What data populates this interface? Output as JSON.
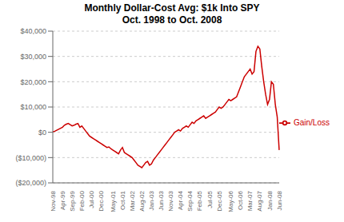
{
  "chart_data": {
    "type": "line",
    "title": "Monthly Dollar-Cost Avg: $1k Into SPY",
    "subtitle": "Oct. 1998 to Oct. 2008",
    "categories": [
      "Nov-98",
      null,
      null,
      null,
      null,
      "Apr-99",
      null,
      null,
      null,
      null,
      "Sep-99",
      null,
      null,
      null,
      null,
      "Feb-00",
      null,
      null,
      null,
      null,
      "Jul-00",
      null,
      null,
      null,
      null,
      "Dec-00",
      null,
      null,
      null,
      null,
      null,
      "May-01",
      null,
      null,
      null,
      null,
      "Oct-01",
      null,
      null,
      null,
      null,
      "Mar-02",
      null,
      null,
      null,
      null,
      "Aug-02",
      null,
      null,
      null,
      null,
      "Jan-03",
      null,
      null,
      null,
      null,
      "Jun-03",
      null,
      null,
      null,
      null,
      "Nov-03",
      null,
      null,
      null,
      null,
      "Apr-04",
      null,
      null,
      null,
      null,
      "Sep-04",
      null,
      null,
      null,
      null,
      "Feb-05",
      null,
      null,
      null,
      null,
      "Jul-05",
      null,
      null,
      null,
      null,
      "Dec-05",
      null,
      null,
      null,
      null,
      null,
      "May-06",
      null,
      null,
      null,
      null,
      "Oct-06",
      null,
      null,
      null,
      null,
      "Mar-07",
      null,
      null,
      null,
      null,
      "Aug-07",
      null,
      null,
      null,
      null,
      "Jan-08",
      null,
      null,
      null,
      null,
      "Jun-08"
    ],
    "series": [
      {
        "name": "Gain/Loss",
        "color": "#cc0000",
        "values": [
          200,
          400,
          800,
          1200,
          1600,
          2000,
          2800,
          3200,
          3500,
          3000,
          2500,
          2800,
          3200,
          3500,
          2000,
          2500,
          1500,
          500,
          -500,
          -1500,
          -2000,
          -2500,
          -3000,
          -3500,
          -4000,
          -4500,
          -5000,
          -5500,
          -6000,
          -5800,
          -6500,
          -7000,
          -7500,
          -8000,
          -8500,
          -7000,
          -6000,
          -8000,
          -8500,
          -9000,
          -9500,
          -10000,
          -11000,
          -12000,
          -13000,
          -13500,
          -14000,
          -13000,
          -12000,
          -11500,
          -13000,
          -12500,
          -11000,
          -10000,
          -9000,
          -8000,
          -7000,
          -6000,
          -5000,
          -4000,
          -3000,
          -2000,
          -1000,
          0,
          500,
          1000,
          500,
          1500,
          2000,
          2500,
          2000,
          3000,
          4000,
          3500,
          4500,
          5000,
          5500,
          6000,
          6500,
          5500,
          6000,
          6500,
          7000,
          7500,
          8000,
          9000,
          10000,
          9500,
          10000,
          11000,
          12000,
          13000,
          12500,
          13000,
          13500,
          14000,
          16000,
          18000,
          20000,
          22000,
          23000,
          24000,
          25000,
          23000,
          24000,
          32000,
          34000,
          33000,
          26000,
          20000,
          15000,
          11000,
          13000,
          20000,
          19000,
          11000,
          6000,
          -7000
        ]
      }
    ],
    "ylim": [
      -20000,
      40000
    ],
    "yticks": [
      {
        "value": -20000,
        "label": "($20,000)"
      },
      {
        "value": -10000,
        "label": "($10,000)"
      },
      {
        "value": 0,
        "label": "$0"
      },
      {
        "value": 10000,
        "label": "$10,000"
      },
      {
        "value": 20000,
        "label": "$20,000"
      },
      {
        "value": 30000,
        "label": "$30,000"
      },
      {
        "value": 40000,
        "label": "$40,000"
      }
    ],
    "grid": true,
    "legend": "right"
  }
}
